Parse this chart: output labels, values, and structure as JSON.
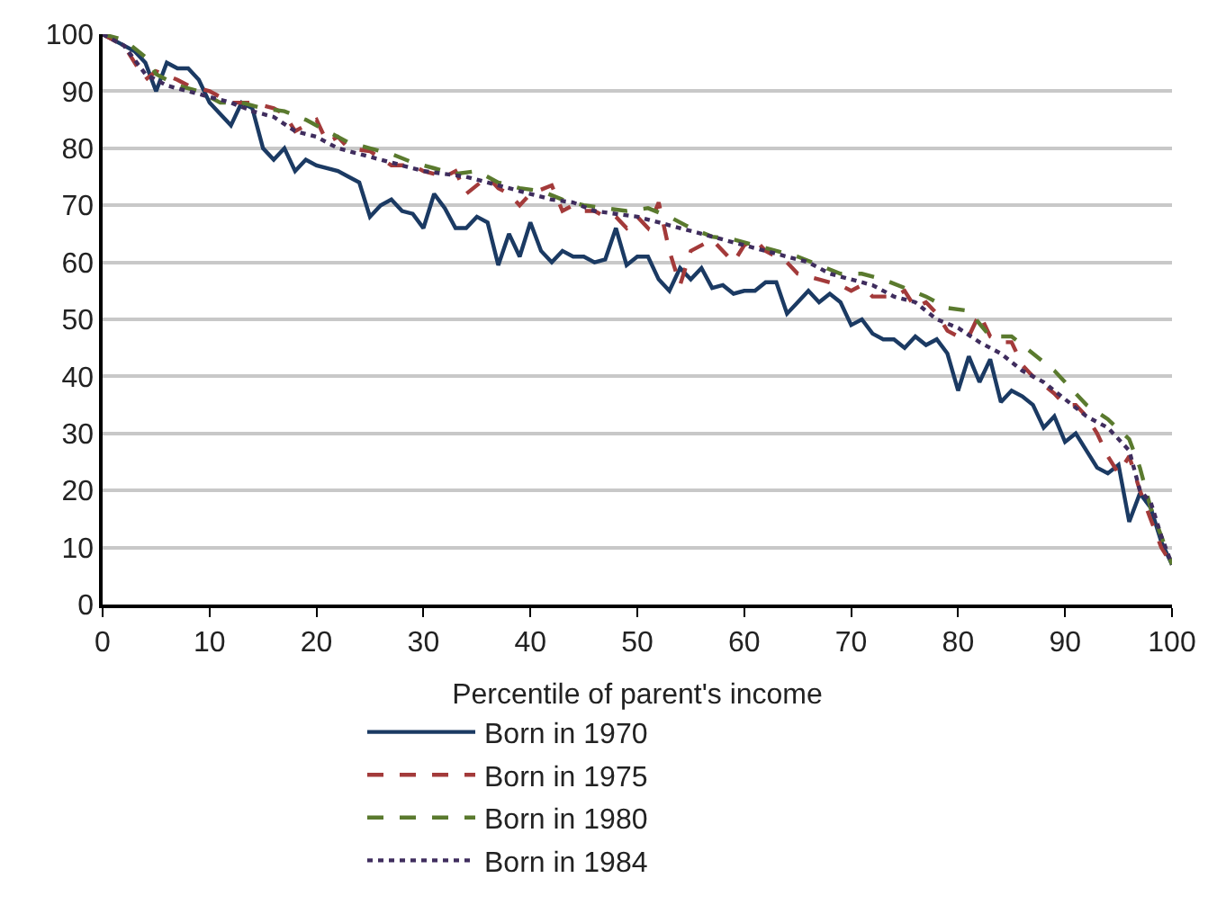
{
  "chart_data": {
    "type": "line",
    "xlabel": "Percentile of parent's income",
    "xlim": [
      0,
      100
    ],
    "xticks": [
      0,
      10,
      20,
      30,
      40,
      50,
      60,
      70,
      80,
      90,
      100
    ],
    "ylim": [
      0,
      100
    ],
    "yticks": [
      0,
      10,
      20,
      30,
      40,
      50,
      60,
      70,
      80,
      90,
      100
    ],
    "grid": "y",
    "legend": "bottom",
    "marker": "none",
    "series": [
      {
        "name": "Born in 1970",
        "color": "#1b3a63",
        "line_style": "solid",
        "x": [
          0,
          2,
          3,
          4,
          5,
          6,
          7,
          8,
          9,
          10,
          11,
          12,
          13,
          14,
          15,
          16,
          17,
          18,
          19,
          20,
          22,
          23,
          24,
          25,
          26,
          27,
          28,
          29,
          30,
          31,
          32,
          33,
          34,
          35,
          36,
          37,
          38,
          39,
          40,
          41,
          42,
          43,
          44,
          45,
          46,
          47,
          48,
          49,
          50,
          51,
          52,
          53,
          54,
          55,
          56,
          57,
          58,
          59,
          60,
          61,
          62,
          63,
          64,
          65,
          66,
          67,
          68,
          69,
          70,
          71,
          72,
          73,
          74,
          75,
          76,
          77,
          78,
          79,
          80,
          81,
          82,
          83,
          84,
          85,
          86,
          87,
          88,
          89,
          90,
          91,
          92,
          93,
          94,
          95,
          96,
          97,
          98,
          99,
          100
        ],
        "values": [
          100,
          98,
          97,
          95,
          90,
          95,
          94,
          94,
          92,
          88,
          86,
          84,
          88,
          87,
          80,
          78,
          80,
          76,
          78,
          77,
          76,
          75,
          74,
          68,
          70,
          71,
          69,
          68.5,
          66,
          72,
          69.5,
          66,
          66,
          68,
          67,
          59.5,
          65,
          61,
          67,
          62,
          60,
          62,
          61,
          61,
          60,
          60.5,
          66,
          59.5,
          61,
          61,
          57,
          55,
          59,
          57,
          59,
          55.5,
          56,
          54.5,
          55,
          55,
          56.5,
          56.5,
          51,
          53,
          55,
          53,
          54.5,
          53,
          49,
          50,
          47.5,
          46.5,
          46.5,
          45,
          47,
          45.5,
          46.5,
          44,
          37.5,
          43.5,
          39,
          43,
          35.5,
          37.5,
          36.5,
          35,
          31,
          33,
          28.5,
          30,
          27,
          24,
          23,
          24.5,
          14.5,
          19.5,
          17,
          11,
          7
        ]
      },
      {
        "name": "Born in 1975",
        "color": "#a33a3a",
        "line_style": "dashed",
        "x": [
          0,
          2,
          4,
          5,
          7,
          8,
          10,
          12,
          14,
          16,
          17,
          18,
          20,
          21,
          22,
          23,
          25,
          27,
          29,
          30,
          32,
          33,
          34,
          36,
          37,
          38,
          39,
          40,
          42,
          43,
          44,
          45,
          46,
          47,
          48,
          49,
          50,
          51,
          52,
          53,
          54,
          55,
          56,
          57,
          58,
          59,
          60,
          61,
          62,
          63,
          64,
          65,
          67,
          69,
          70,
          71,
          72,
          74,
          75,
          76,
          77,
          78,
          79,
          80,
          81,
          82,
          83,
          84,
          85,
          86,
          87,
          89,
          90,
          91,
          92,
          93,
          94,
          95,
          96,
          97,
          98,
          99,
          100
        ],
        "values": [
          100,
          98,
          92,
          93.5,
          92,
          91,
          90,
          88,
          88,
          87,
          86,
          83,
          85,
          81,
          82,
          80,
          79.5,
          77,
          77,
          76,
          75,
          76,
          72,
          75,
          73,
          72,
          70,
          72,
          73.5,
          69,
          70,
          69,
          69,
          68,
          68,
          66,
          68,
          66,
          70.5,
          62,
          56,
          62,
          63,
          64,
          62,
          60,
          63,
          64,
          62,
          61,
          60,
          58,
          57,
          56,
          55,
          56,
          54,
          54,
          55,
          52,
          53,
          51,
          48,
          47,
          47,
          51,
          47,
          46,
          46,
          42,
          40,
          37,
          35,
          35,
          33,
          30,
          26,
          23,
          26,
          20,
          15,
          10,
          7
        ]
      },
      {
        "name": "Born in 1980",
        "color": "#5a7a2e",
        "line_style": "dashed",
        "x": [
          0,
          2,
          4,
          5,
          7,
          9,
          11,
          13,
          15,
          17,
          19,
          21,
          23,
          25,
          27,
          29,
          31,
          33,
          35,
          37,
          39,
          41,
          43,
          45,
          47,
          49,
          51,
          53,
          55,
          57,
          59,
          61,
          63,
          65,
          67,
          69,
          71,
          73,
          75,
          77,
          79,
          81,
          83,
          85,
          87,
          89,
          90,
          92,
          94,
          96,
          97,
          98,
          99,
          100
        ],
        "values": [
          100,
          99,
          96,
          93,
          91,
          90,
          88,
          88,
          87,
          86.5,
          85,
          83,
          81,
          80,
          79,
          77.5,
          76.5,
          75.5,
          76,
          74,
          73,
          72.5,
          71,
          70,
          69.5,
          69,
          69.5,
          68,
          66,
          64.5,
          64,
          63,
          62,
          61,
          59.5,
          58,
          58,
          57,
          55.5,
          54,
          52,
          51.5,
          47,
          47,
          44,
          41,
          39,
          35,
          32.5,
          29,
          24,
          17,
          12,
          7
        ]
      },
      {
        "name": "Born in 1984",
        "color": "#3f2d5e",
        "line_style": "dotted",
        "x": [
          0,
          2,
          4,
          6,
          8,
          10,
          12,
          14,
          16,
          18,
          20,
          22,
          24,
          26,
          28,
          30,
          32,
          34,
          36,
          38,
          40,
          42,
          44,
          46,
          48,
          50,
          52,
          54,
          56,
          58,
          60,
          62,
          64,
          66,
          68,
          70,
          72,
          74,
          76,
          78,
          80,
          82,
          84,
          86,
          88,
          90,
          92,
          94,
          96,
          97,
          98,
          99,
          100
        ],
        "values": [
          100,
          98,
          93,
          91,
          90,
          89,
          88,
          86.5,
          85.5,
          83,
          82,
          80,
          79,
          78,
          77,
          76,
          75.5,
          75,
          74,
          73,
          72,
          71,
          70.5,
          69,
          68.5,
          68,
          67,
          66,
          65,
          64,
          63,
          62,
          61,
          60,
          58,
          57,
          56,
          54,
          53,
          50,
          48.5,
          46,
          44,
          41,
          39,
          36,
          33,
          31,
          27,
          20,
          18,
          12,
          7
        ]
      }
    ]
  }
}
